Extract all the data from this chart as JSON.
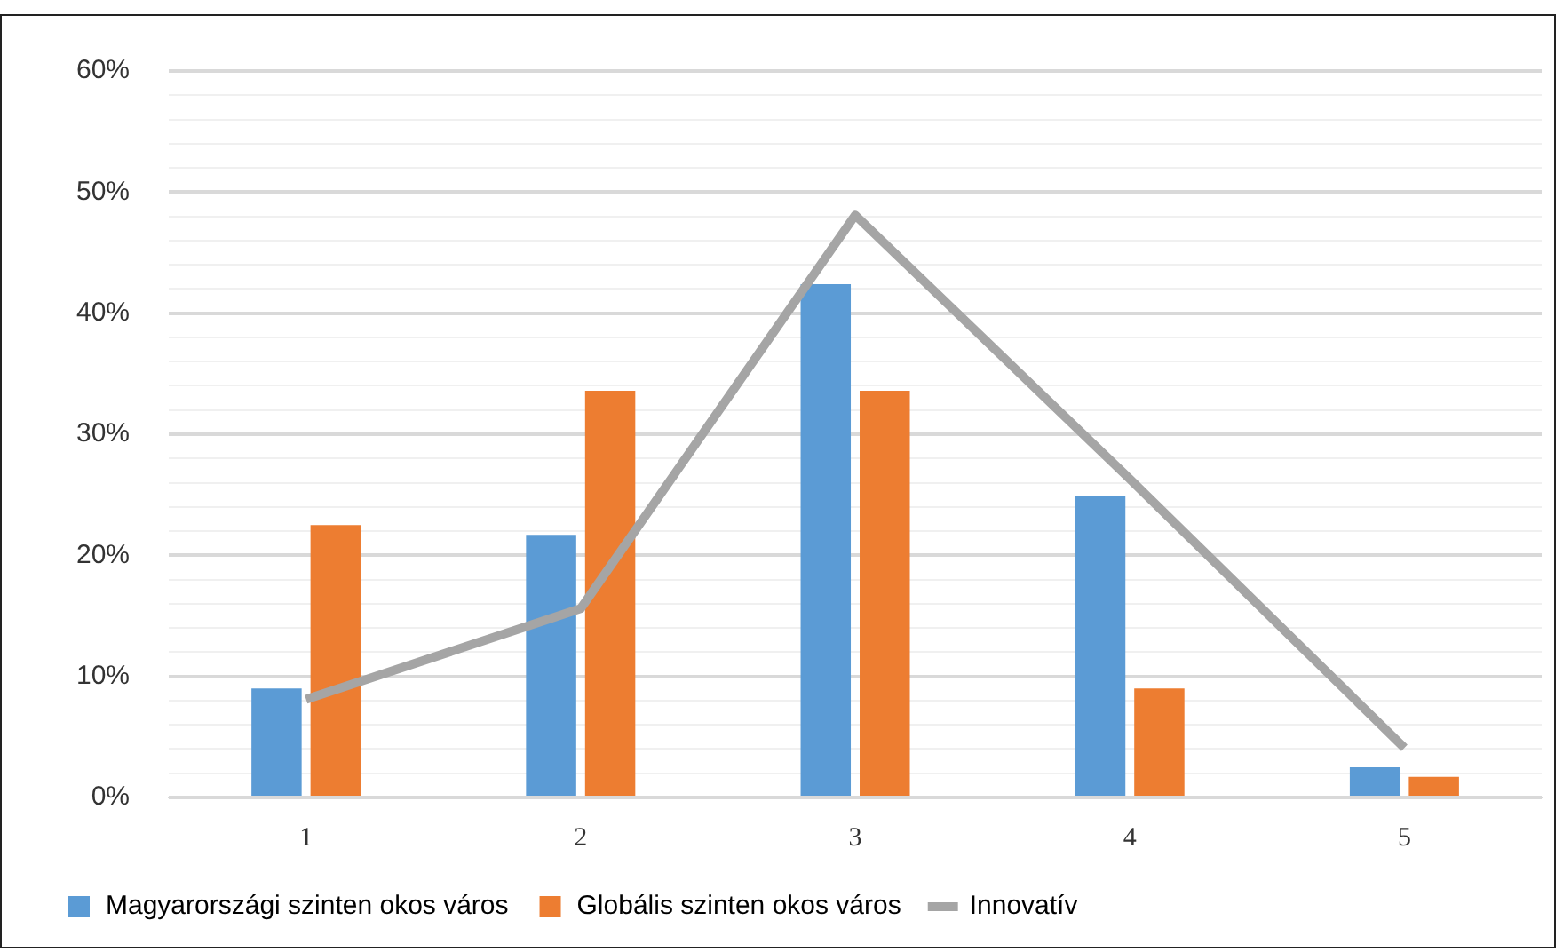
{
  "chart_data": {
    "type": "bar",
    "categories": [
      "1",
      "2",
      "3",
      "4",
      "5"
    ],
    "series": [
      {
        "name": "Magyarországi szinten okos város",
        "color": "#5b9bd5",
        "values": [
          9.0,
          21.7,
          42.4,
          24.9,
          2.5
        ]
      },
      {
        "name": "Globális szinten okos város",
        "color": "#ed7d31",
        "values": [
          22.5,
          33.6,
          33.6,
          9.0,
          1.7
        ]
      },
      {
        "name": "Innovatív",
        "type": "line",
        "color": "#a5a5a5",
        "values": [
          8.1,
          15.6,
          48.1,
          26.3,
          4.1
        ]
      }
    ],
    "ylim": [
      0,
      60
    ],
    "yticks": [
      {
        "value": 0,
        "label": "0%"
      },
      {
        "value": 2,
        "label": null
      },
      {
        "value": 4,
        "label": null
      },
      {
        "value": 6,
        "label": null
      },
      {
        "value": 8,
        "label": null
      },
      {
        "value": 10,
        "label": "10%"
      },
      {
        "value": 12,
        "label": null
      },
      {
        "value": 14,
        "label": null
      },
      {
        "value": 16,
        "label": null
      },
      {
        "value": 18,
        "label": null
      },
      {
        "value": 20,
        "label": "20%"
      },
      {
        "value": 22,
        "label": null
      },
      {
        "value": 24,
        "label": null
      },
      {
        "value": 26,
        "label": null
      },
      {
        "value": 28,
        "label": null
      },
      {
        "value": 30,
        "label": "30%"
      },
      {
        "value": 32,
        "label": null
      },
      {
        "value": 34,
        "label": null
      },
      {
        "value": 36,
        "label": null
      },
      {
        "value": 38,
        "label": null
      },
      {
        "value": 40,
        "label": "40%"
      },
      {
        "value": 42,
        "label": null
      },
      {
        "value": 44,
        "label": null
      },
      {
        "value": 46,
        "label": null
      },
      {
        "value": 48,
        "label": null
      },
      {
        "value": 50,
        "label": "50%"
      },
      {
        "value": 52,
        "label": null
      },
      {
        "value": 54,
        "label": null
      },
      {
        "value": 56,
        "label": null
      },
      {
        "value": 58,
        "label": null
      },
      {
        "value": 60,
        "label": "60%"
      }
    ],
    "grid": "y",
    "legend": "bottom",
    "marker": "none"
  }
}
